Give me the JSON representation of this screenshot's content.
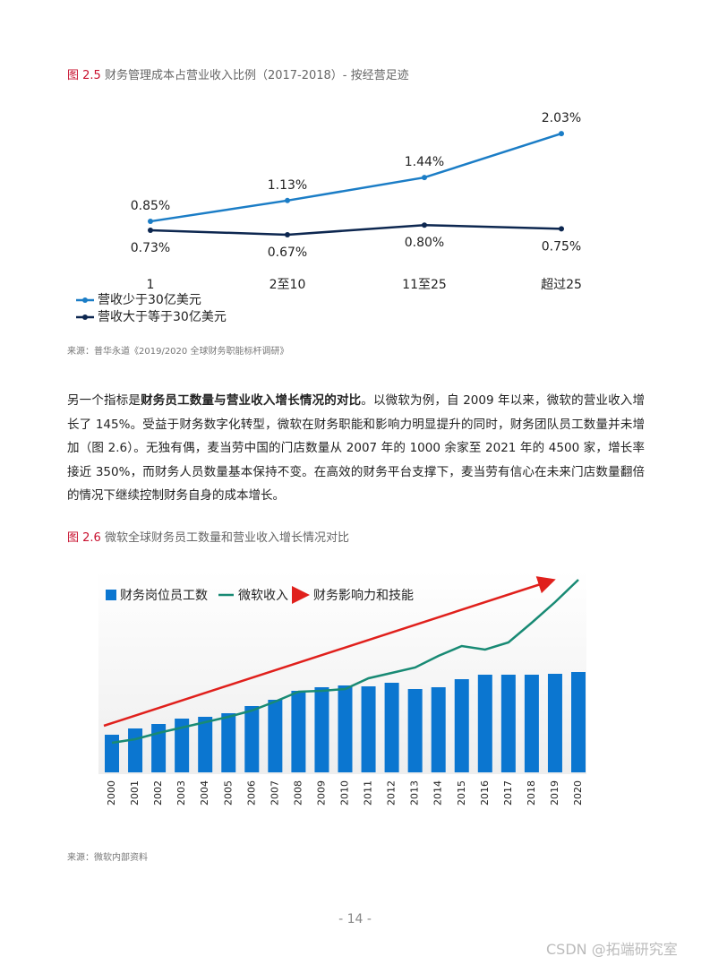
{
  "figure1": {
    "label": "图 2.5",
    "title": "财务管理成本占营业收入比例（2017-2018）- 按经营足迹",
    "chart": {
      "type": "line",
      "categories": [
        "1",
        "2至10",
        "11至25",
        "超过25"
      ],
      "series": [
        {
          "name": "营收少于30亿美元",
          "color": "#1b7dc6",
          "values": [
            0.85,
            1.13,
            1.44,
            2.03
          ],
          "value_labels": [
            "0.85%",
            "1.13%",
            "1.44%",
            "2.03%"
          ]
        },
        {
          "name": "营收大于等于30亿美元",
          "color": "#0d2750",
          "values": [
            0.73,
            0.67,
            0.8,
            0.75
          ],
          "value_labels": [
            "0.73%",
            "0.67%",
            "0.80%",
            "0.75%"
          ]
        }
      ]
    },
    "source": "来源：普华永道《2019/2020 全球财务职能标杆调研》"
  },
  "paragraph": [
    "另一个指标是",
    "财务员工数量与营业收入增长情况的对比",
    "。以微软为例，自 2009 年以来，微软的营业收入增长了 145%。受益于财务数字化转型，微软在财务职能和影响力明显提升的同时，财务团队员工数量并未增加（图 2.6）。无独有偶，麦当劳中国的门店数量从 2007 年的 1000 余家至 2021 年的 4500 家，增长率接近 350%，而财务人员数量基本保持不变。在高效的财务平台支撑下，麦当劳有信心在未来门店数量翻倍的情况下继续控制财务自身的成本增长。"
  ],
  "figure2": {
    "label": "图 2.6",
    "title": "微软全球财务员工数量和营业收入增长情况对比",
    "chart": {
      "type": "bar-line",
      "categories": [
        "2000",
        "2001",
        "2002",
        "2003",
        "2004",
        "2005",
        "2006",
        "2007",
        "2008",
        "2009",
        "2010",
        "2011",
        "2012",
        "2013",
        "2014",
        "2015",
        "2016",
        "2017",
        "2018",
        "2019",
        "2020"
      ],
      "series": [
        {
          "name": "财务岗位员工数",
          "type": "bar",
          "color": "#0b76d0",
          "values": [
            42,
            49,
            54,
            60,
            62,
            66,
            74,
            81,
            91,
            95,
            97,
            96,
            100,
            93,
            95,
            104,
            109,
            109,
            109,
            110,
            112
          ]
        },
        {
          "name": "微软收入",
          "type": "line",
          "color": "#188a74",
          "values": [
            33,
            37,
            44,
            50,
            56,
            62,
            69,
            79,
            90,
            91,
            93,
            105,
            111,
            117,
            130,
            141,
            137,
            145,
            167,
            190,
            215
          ]
        }
      ],
      "trend_name": "财务影响力和技能",
      "trend_color": "#e0201c"
    },
    "source": "来源：微软内部资料"
  },
  "page_number": "- 14 -",
  "watermark": "CSDN @拓端研究室"
}
